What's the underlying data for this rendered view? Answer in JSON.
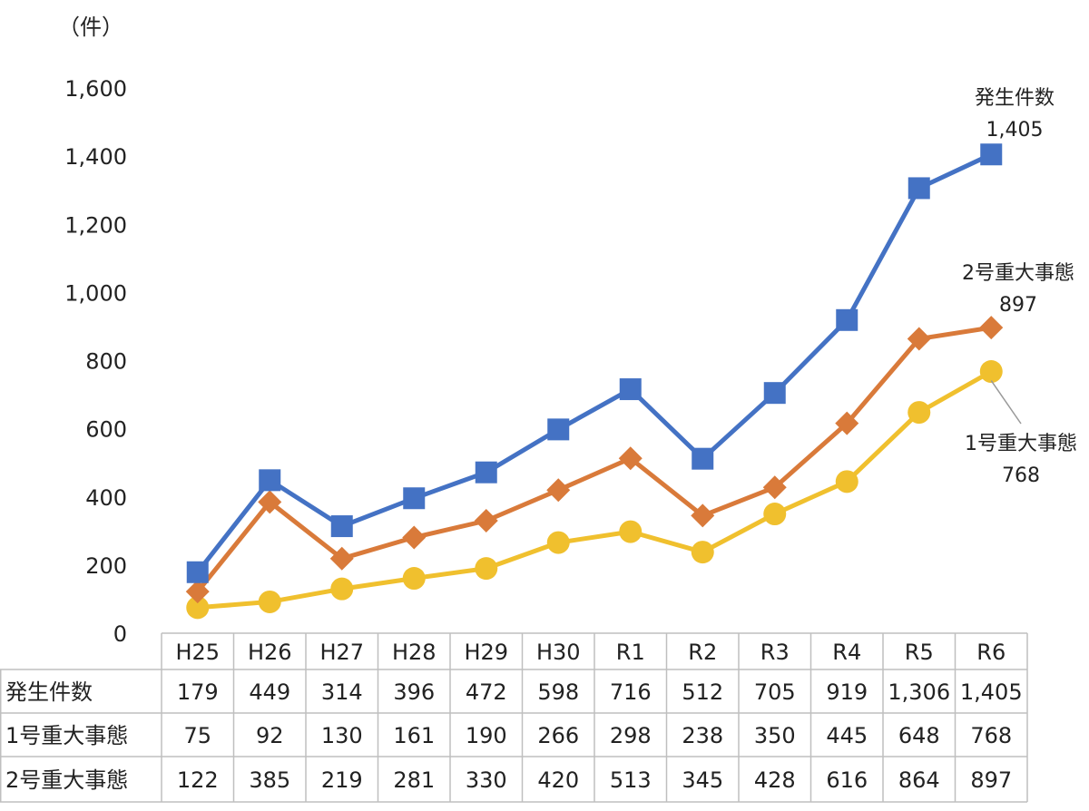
{
  "chart_data": {
    "type": "line",
    "title": "",
    "ylabel": "（件）",
    "xlabel": "",
    "ylim": [
      0,
      1600
    ],
    "yticks": [
      0,
      200,
      400,
      600,
      800,
      1000,
      1200,
      1400,
      1600
    ],
    "ytick_labels": [
      "0",
      "200",
      "400",
      "600",
      "800",
      "1,000",
      "1,200",
      "1,400",
      "1,600"
    ],
    "categories": [
      "H25",
      "H26",
      "H27",
      "H28",
      "H29",
      "H30",
      "R1",
      "R2",
      "R3",
      "R4",
      "R5",
      "R6"
    ],
    "grid": false,
    "series": [
      {
        "name": "発生件数",
        "marker": "square",
        "color": "#4472C4",
        "values": [
          179,
          449,
          314,
          396,
          472,
          598,
          716,
          512,
          705,
          919,
          1306,
          1405
        ],
        "display": [
          "179",
          "449",
          "314",
          "396",
          "472",
          "598",
          "716",
          "512",
          "705",
          "919",
          "1,306",
          "1,405"
        ],
        "callout_name": "発生件数",
        "callout_value": "1,405"
      },
      {
        "name": "1号重大事態",
        "marker": "circle",
        "color": "#F0C02E",
        "values": [
          75,
          92,
          130,
          161,
          190,
          266,
          298,
          238,
          350,
          445,
          648,
          768
        ],
        "display": [
          "75",
          "92",
          "130",
          "161",
          "190",
          "266",
          "298",
          "238",
          "350",
          "445",
          "648",
          "768"
        ],
        "callout_name": "1号重大事態",
        "callout_value": "768"
      },
      {
        "name": "2号重大事態",
        "marker": "diamond",
        "color": "#D97A3A",
        "values": [
          122,
          385,
          219,
          281,
          330,
          420,
          513,
          345,
          428,
          616,
          864,
          897
        ],
        "display": [
          "122",
          "385",
          "219",
          "281",
          "330",
          "420",
          "513",
          "345",
          "428",
          "616",
          "864",
          "897"
        ],
        "callout_name": "2号重大事態",
        "callout_value": "897"
      }
    ],
    "callout_leader_color": "#999999",
    "axis_color": "#BFBFBF"
  }
}
